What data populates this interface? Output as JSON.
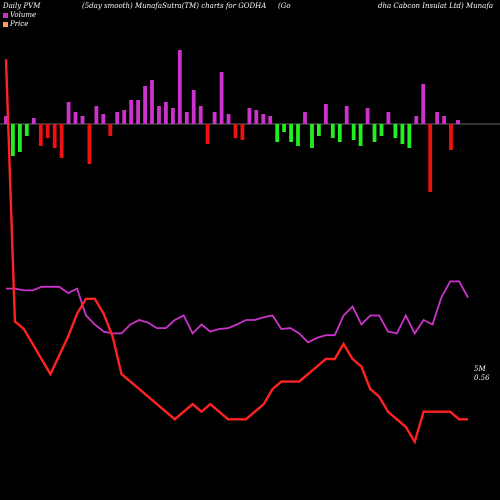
{
  "header": {
    "left": "Daily PVM",
    "middle": "(5day smooth) MunafaSutra(TM) charts for GODHA",
    "right_part1": "(Go",
    "right_part2": "dha Cabcon Insulat Ltd) Munafa"
  },
  "legend": [
    {
      "label": "Volume",
      "color": "#cc33cc"
    },
    {
      "label": "Price",
      "color": "#ff9966"
    }
  ],
  "colors": {
    "volume_line": "#cc33cc",
    "price_line": "#ff2222",
    "bar_up": "#cc33cc",
    "bar_down_green": "#22ee22",
    "bar_down_red": "#ee1111",
    "zero_line": "#cccccc"
  },
  "chart_data": {
    "type": "line",
    "end_labels": {
      "volume": "5M",
      "price": "0.56"
    },
    "volume_line": [
      110,
      110,
      108,
      108,
      112,
      112,
      112,
      105,
      110,
      80,
      70,
      62,
      60,
      60,
      70,
      75,
      72,
      66,
      66,
      75,
      80,
      60,
      70,
      62,
      65,
      66,
      70,
      75,
      75,
      78,
      80,
      65,
      66,
      60,
      50,
      55,
      58,
      58,
      80,
      90,
      70,
      80,
      80,
      62,
      60,
      80,
      60,
      75,
      70,
      100,
      118,
      118,
      100
    ],
    "price_line": [
      2,
      350,
      360,
      380,
      400,
      420,
      395,
      370,
      340,
      320,
      320,
      340,
      370,
      420,
      430,
      440,
      450,
      460,
      470,
      480,
      470,
      460,
      470,
      460,
      470,
      480,
      480,
      480,
      470,
      460,
      440,
      430,
      430,
      430,
      420,
      410,
      400,
      400,
      380,
      400,
      410,
      440,
      450,
      470,
      480,
      490,
      510,
      470,
      470,
      470,
      470,
      480,
      480
    ],
    "bars": [
      {
        "v": 8,
        "c": "up"
      },
      {
        "v": -32,
        "c": "down_green"
      },
      {
        "v": -28,
        "c": "down_green"
      },
      {
        "v": -12,
        "c": "down_green"
      },
      {
        "v": 6,
        "c": "up"
      },
      {
        "v": -22,
        "c": "down_red"
      },
      {
        "v": -14,
        "c": "down_red"
      },
      {
        "v": -24,
        "c": "down_red"
      },
      {
        "v": -34,
        "c": "down_red"
      },
      {
        "v": 22,
        "c": "up"
      },
      {
        "v": 12,
        "c": "up"
      },
      {
        "v": 8,
        "c": "up"
      },
      {
        "v": -40,
        "c": "down_red"
      },
      {
        "v": 18,
        "c": "up"
      },
      {
        "v": 10,
        "c": "up"
      },
      {
        "v": -12,
        "c": "down_red"
      },
      {
        "v": 12,
        "c": "up"
      },
      {
        "v": 14,
        "c": "up"
      },
      {
        "v": 24,
        "c": "up"
      },
      {
        "v": 24,
        "c": "up"
      },
      {
        "v": 38,
        "c": "up"
      },
      {
        "v": 44,
        "c": "up"
      },
      {
        "v": 18,
        "c": "up"
      },
      {
        "v": 22,
        "c": "up"
      },
      {
        "v": 16,
        "c": "up"
      },
      {
        "v": 74,
        "c": "up"
      },
      {
        "v": 12,
        "c": "up"
      },
      {
        "v": 34,
        "c": "up"
      },
      {
        "v": 18,
        "c": "up"
      },
      {
        "v": -20,
        "c": "down_red"
      },
      {
        "v": 12,
        "c": "up"
      },
      {
        "v": 52,
        "c": "up"
      },
      {
        "v": 10,
        "c": "up"
      },
      {
        "v": -14,
        "c": "down_red"
      },
      {
        "v": -16,
        "c": "down_red"
      },
      {
        "v": 16,
        "c": "up"
      },
      {
        "v": 14,
        "c": "up"
      },
      {
        "v": 10,
        "c": "up"
      },
      {
        "v": 8,
        "c": "up"
      },
      {
        "v": -18,
        "c": "down_green"
      },
      {
        "v": -8,
        "c": "down_green"
      },
      {
        "v": -18,
        "c": "down_green"
      },
      {
        "v": -22,
        "c": "down_green"
      },
      {
        "v": 12,
        "c": "up"
      },
      {
        "v": -24,
        "c": "down_green"
      },
      {
        "v": -12,
        "c": "down_green"
      },
      {
        "v": 20,
        "c": "up"
      },
      {
        "v": -14,
        "c": "down_green"
      },
      {
        "v": -18,
        "c": "down_green"
      },
      {
        "v": 18,
        "c": "up"
      },
      {
        "v": -16,
        "c": "down_green"
      },
      {
        "v": -22,
        "c": "down_green"
      },
      {
        "v": 16,
        "c": "up"
      },
      {
        "v": -18,
        "c": "down_green"
      },
      {
        "v": -12,
        "c": "down_green"
      },
      {
        "v": 12,
        "c": "up"
      },
      {
        "v": -14,
        "c": "down_green"
      },
      {
        "v": -20,
        "c": "down_green"
      },
      {
        "v": -24,
        "c": "down_green"
      },
      {
        "v": 8,
        "c": "up"
      },
      {
        "v": 40,
        "c": "up"
      },
      {
        "v": -68,
        "c": "down_red"
      },
      {
        "v": 12,
        "c": "up"
      },
      {
        "v": 8,
        "c": "up"
      },
      {
        "v": -26,
        "c": "down_red"
      },
      {
        "v": 4,
        "c": "up"
      }
    ]
  }
}
